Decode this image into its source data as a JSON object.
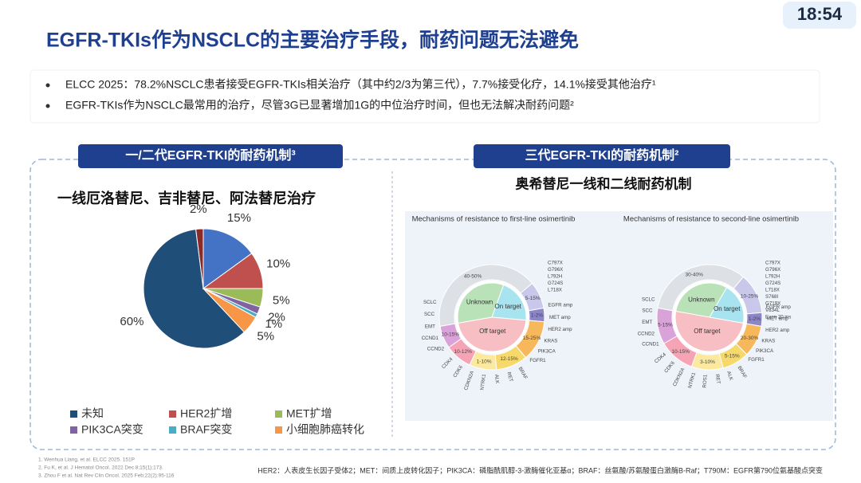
{
  "clock": "18:54",
  "title": "EGFR-TKIs作为NSCLC的主要治疗手段，耐药问题无法避免",
  "bullets": [
    "ELCC 2025：78.2%NSCLC患者接受EGFR-TKIs相关治疗（其中约2/3为第三代），7.7%接受化疗，14.1%接受其他治疗¹",
    "EGFR-TKIs作为NSCLC最常用的治疗，尽管3G已显著增加1G的中位治疗时间，但也无法解决耐药问题²"
  ],
  "left_header": "一/二代EGFR-TKI的耐药机制³",
  "right_header": "三代EGFR-TKI的耐药机制²",
  "right_subtitle": "奥希替尼一线和二线耐药机制",
  "chart_data": {
    "type": "pie",
    "title": "一线厄洛替尼、吉非替尼、阿法替尼治疗",
    "categories": [
      "未知",
      null,
      null,
      "HER2扩增",
      "MET扩增",
      "PIK3CA突变",
      "BRAF突变",
      "小细胞肺癌转化"
    ],
    "values": [
      60,
      2,
      15,
      10,
      5,
      2,
      1,
      5
    ],
    "value_labels": [
      "60%",
      "2%",
      "15%",
      "10%",
      "5%",
      "2%",
      "1%",
      "5%"
    ],
    "colors": [
      "#1f4e79",
      "#8b2a2a",
      "#4472c4",
      "#c0504d",
      "#9bbb59",
      "#8064a2",
      "#4bacc6",
      "#f79646"
    ],
    "legend": "bottom"
  },
  "diagrams": [
    {
      "title": "Mechanisms of resistance to first-line osimertinib",
      "inner": [
        "Unknown",
        "On target",
        "Off target"
      ],
      "ring": [
        "40-50%",
        "5-15%",
        "1-2%",
        "15-25%",
        "12-15%",
        "1-10%",
        "10-12%",
        "10-15%"
      ],
      "mutations": [
        "C797X",
        "G796X",
        "L792H",
        "G724S",
        "L718X"
      ],
      "genes": [
        "EGFR amp",
        "MET amp",
        "HER2 amp",
        "KRAS",
        "PIK3CA",
        "FGFR1",
        "BRAF",
        "RET",
        "ALK",
        "NTRK1",
        "CDKN2A",
        "CDK6",
        "CDK4",
        "CCND2",
        "CCND1",
        "EMT",
        "SCC",
        "SCLC"
      ]
    },
    {
      "title": "Mechanisms of resistance to second-line osimertinib",
      "inner": [
        "Unknown",
        "On target",
        "Off target"
      ],
      "ring": [
        "30-40%",
        "10-25%",
        "1-2%",
        "20-30%",
        "5-15%",
        "3-10%",
        "10-15%",
        "5-15%"
      ],
      "mutations": [
        "C797X",
        "G796X",
        "L792H",
        "G724S",
        "L718X",
        "S768I",
        "G719X",
        "V834L",
        "Exon 20 ins"
      ],
      "genes": [
        "EGFR amp",
        "MET amp",
        "HER2 amp",
        "KRAS",
        "PIK3CA",
        "FGFR1",
        "BRAF",
        "ALK",
        "RET",
        "ROS1",
        "NTRK1",
        "CDKN2A",
        "CDK6",
        "CDK4",
        "CCND1",
        "CCND2",
        "EMT",
        "SCC",
        "SCLC"
      ]
    }
  ],
  "footnotes": [
    "1.    Wenhua Liang, et al. ELCC 2025. 151P",
    "2.    Fu K, et al. J Hematol Oncol. 2022 Dec 8;15(1):173.",
    "3.    Zhou F et al. Nat Rev Clin Oncol. 2025 Feb;22(2):95-116"
  ],
  "abbreviations": "HER2：人表皮生长因子受体2；MET：间质上皮转化因子；PIK3CA：磷脂酰肌醇-3-激酶催化亚基α；BRAF：丝氨酸/苏氨酸蛋白激酶B-Raf；T790M：EGFR第790位氨基酸点突变"
}
